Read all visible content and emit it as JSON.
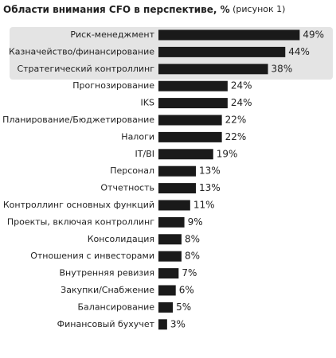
{
  "chart_data": {
    "type": "bar",
    "orientation": "horizontal",
    "title": "Области внимания CFO в перспективе, %",
    "subtitle": "(рисунок 1)",
    "categories": [
      "Риск-менеджмент",
      "Казначейство/финансирование",
      "Стратегический контроллинг",
      "Прогнозирование",
      "IKS",
      "Планирование/Бюджетирование",
      "Налоги",
      "IT/BI",
      "Персонал",
      "Отчетность",
      "Контроллинг основных функций",
      "Проекты, включая контроллинг",
      "Консолидация",
      "Отношения с инвесторами",
      "Внутренняя ревизия",
      "Закупки/Снабжение",
      "Балансирование",
      "Финансовый бухучет"
    ],
    "values": [
      49,
      44,
      38,
      24,
      24,
      22,
      22,
      19,
      13,
      13,
      11,
      9,
      8,
      8,
      7,
      6,
      5,
      3
    ],
    "value_labels": [
      "49%",
      "44%",
      "38%",
      "24%",
      "24%",
      "22%",
      "22%",
      "19%",
      "13%",
      "13%",
      "11%",
      "9%",
      "8%",
      "8%",
      "7%",
      "6%",
      "5%",
      "3%"
    ],
    "color": "#1a1a1a"
  }
}
